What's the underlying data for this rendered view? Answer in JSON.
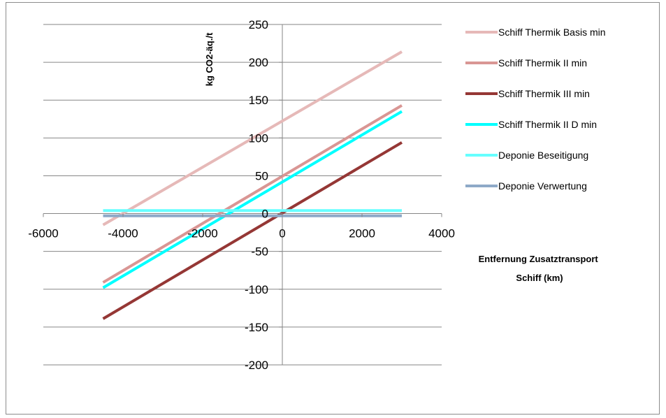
{
  "chart_data": {
    "type": "line",
    "title": "",
    "xlabel": "Entfernung Zusatztransport Schiff (km)",
    "xlabel_lines": [
      "Entfernung Zusatztransport",
      "Schiff (km)"
    ],
    "ylabel": "kg CO2-äq./t",
    "xlim": [
      -6000,
      4000
    ],
    "ylim": [
      -200,
      250
    ],
    "xticks": [
      -6000,
      -4000,
      -2000,
      0,
      2000,
      4000
    ],
    "yticks": [
      250,
      200,
      150,
      100,
      50,
      0,
      -50,
      -100,
      -150,
      -200
    ],
    "grid": "horizontal",
    "legend_position": "right",
    "series": [
      {
        "name": "Schiff Thermik Basis min",
        "color": "#e6b9b8",
        "x": [
          -4500,
          3000
        ],
        "y": [
          -15,
          214
        ]
      },
      {
        "name": "Schiff Thermik II min",
        "color": "#d99694",
        "x": [
          -4500,
          3000
        ],
        "y": [
          -91,
          143
        ]
      },
      {
        "name": "Schiff Thermik III min",
        "color": "#953735",
        "x": [
          -4500,
          3000
        ],
        "y": [
          -139,
          94
        ]
      },
      {
        "name": "Schiff Thermik II D min",
        "color": "#00ffff",
        "x": [
          -4500,
          3000
        ],
        "y": [
          -98,
          135
        ]
      },
      {
        "name": "Deponie Beseitigung",
        "color": "#66ffff",
        "x": [
          -4500,
          3000
        ],
        "y": [
          4,
          4
        ]
      },
      {
        "name": "Deponie Verwertung",
        "color": "#8ea9c8",
        "x": [
          -4500,
          3000
        ],
        "y": [
          -3,
          -3
        ]
      }
    ]
  }
}
